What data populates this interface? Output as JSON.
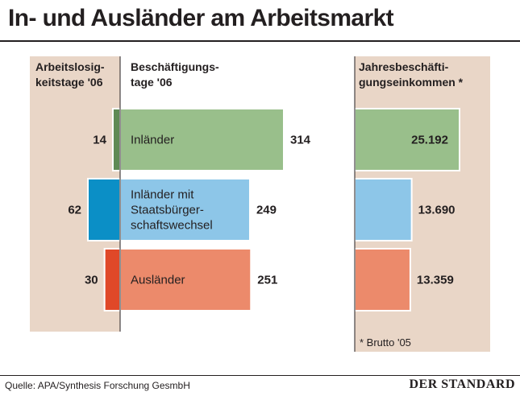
{
  "title": "In- und Ausländer am Arbeitsmarkt",
  "source": "Quelle: APA/Synthesis Forschung GesmbH",
  "brand": "DER STANDARD",
  "colors": {
    "panel": "#e9d6c7",
    "green": "#99bf8b",
    "green_dark": "#5f8a55",
    "blue": "#8dc6e8",
    "blue_dark": "#0b8fc6",
    "red": "#ec8a6b",
    "red_dark": "#e04828",
    "text": "#231f20"
  },
  "chart_data": {
    "type": "bar",
    "headers": {
      "left": [
        "Arbeitslosig-",
        "keitstage '06"
      ],
      "middle": [
        "Beschäftigungs-",
        "tage '06"
      ],
      "right": [
        "Jahresbeschäfti-",
        "gungseinkommen *"
      ]
    },
    "categories": [
      [
        "Inländer"
      ],
      [
        "Inländer mit",
        "Staatsbürger-",
        "schaftswechsel"
      ],
      [
        "Ausländer"
      ]
    ],
    "series": [
      {
        "name": "Arbeitslosigkeitstage '06",
        "values": [
          14,
          62,
          30
        ],
        "labels": [
          "14",
          "62",
          "30"
        ]
      },
      {
        "name": "Beschäftigungstage '06",
        "values": [
          314,
          249,
          251
        ],
        "labels": [
          "314",
          "249",
          "251"
        ]
      },
      {
        "name": "Jahresbeschäftigungseinkommen",
        "values": [
          25192,
          13690,
          13359
        ],
        "labels": [
          "25.192",
          "13.690",
          "13.359"
        ]
      }
    ],
    "footnote": "* Brutto '05"
  }
}
